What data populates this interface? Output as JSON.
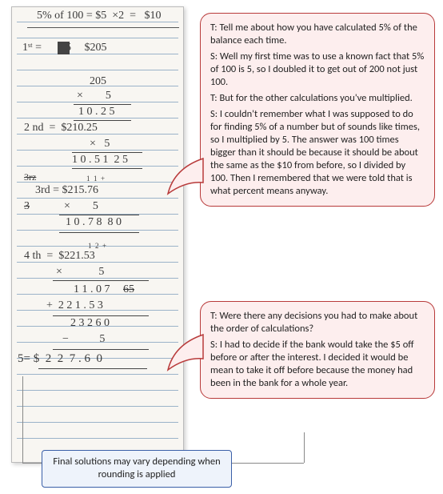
{
  "paper": {
    "line_top": "5% of 100 = $5  ×2  =   $10",
    "first_label": "1ˢᵗ = ",
    "first_strike": "205",
    "first_val": " $205",
    "c1_a": "205",
    "c1_b": "×        5",
    "c1_r": "1 0 . 2 5",
    "second_label": "2 nd  =  $210.25",
    "c2_b": "×   5",
    "c2_r": "1 0 . 5 1  2 5",
    "scribble": "3rz",
    "third_label": "3rd = $215.76",
    "third_carry": "1  1  +",
    "c3_strike": "3",
    "c3_b": "×        5",
    "c3_r": "1 0 . 7 8  8 0",
    "fourth_label": "4 th  =  $221.53",
    "fourth_carry": "1  2  +",
    "c4_b": "×             5",
    "c4_r1": "1 1 . 0 7",
    "c4_r1_strike": "65",
    "c4_add": "+  2 2 1 . 5 3",
    "c4_sum": "2 3 2 6 0",
    "c4_minus": "−           5",
    "fifth": "5= $  2  2  7 . 6  0",
    "rule_count": 27,
    "rule_start": 18,
    "rule_gap": 20
  },
  "bubble1": {
    "t1": "T: Tell me about how you have calculated 5% of the balance each time.",
    "s1": "S: Well my first time was to use a known fact that 5% of 100 is 5, so I doubled it to get out of 200 not just 100.",
    "t2": "T: But for the other calculations you've multiplied.",
    "s2": "S: I couldn't remember what I was supposed to do for finding 5% of a number but of sounds like times, so I multiplied by 5. The answer was 100 times bigger than it should be because it should be about the same as the $10 from before, so I divided by 100. Then I remembered that we were told that is what percent means anyway."
  },
  "bubble2": {
    "t1": "T: Were there any decisions you had to make about the order of calculations?",
    "s1": "S: I had to decide if the bank would take the $5 off before or after the interest. I decided it would be mean to take it off before because the money had been in the bank for a whole year."
  },
  "note": {
    "text": "Final solutions may vary depending when rounding is applied"
  },
  "colors": {
    "bubble_fill": "#fdeeee",
    "bubble_border": "#b83a3a",
    "note_fill": "#eef3fb",
    "note_border": "#3a5fa8",
    "rule": "#9bb3c9"
  }
}
